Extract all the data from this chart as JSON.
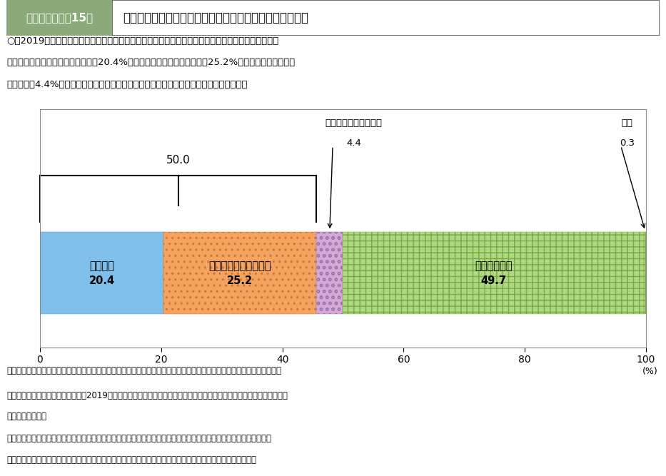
{
  "title_left": "第２－（４）－15図",
  "title_right": "企業のＯＦＦ－ＪＴ又は自己啓発支援への費用支出の状況",
  "title_bg_color": "#8aaa7a",
  "title_right_bg": "#ffffff",
  "desc1": "○　2019年度において、ＯＦＦ－ＪＴ又は自己啓発支援に費用支出した企業の割合は５割となってお",
  "desc2": "　り、内訳をみると「両方支出」は20.4%、「ＯＦＦ－ＪＴのみ支出」は25.2%、「自己啓発支援のみ",
  "desc3": "　支出」は4.4%となっている。一方、どちらにも支出していない企業も約５割存在する。",
  "segments": [
    {
      "label1": "両方支出",
      "label2": "20.4",
      "value": 20.4,
      "facecolor": "#7fbfea",
      "hatch": "~",
      "edgecolor": "#5599cc"
    },
    {
      "label1": "ＯＦＦ－ＪＴのみ支出",
      "label2": "25.2",
      "value": 25.2,
      "facecolor": "#f4a460",
      "hatch": ".",
      "edgecolor": "#c87830"
    },
    {
      "label1": "",
      "label2": "",
      "value": 4.4,
      "facecolor": "#d4a8d8",
      "hatch": "o",
      "edgecolor": "#a078a8"
    },
    {
      "label1": "両方支出なし",
      "label2": "49.7",
      "value": 49.7,
      "facecolor": "#b0d880",
      "hatch": "+",
      "edgecolor": "#78aa48"
    },
    {
      "label1": "",
      "label2": "",
      "value": 0.3,
      "facecolor": "#b0d880",
      "hatch": "+",
      "edgecolor": "#78aa48"
    }
  ],
  "brace_label": "50.0",
  "ann_jikei_text": "自己啓発支援のみ支出",
  "ann_jikei_val": "4.4",
  "ann_fumei_text": "不明",
  "ann_fumei_val": "0.3",
  "xticks": [
    0,
    20,
    40,
    60,
    80,
    100
  ],
  "pct_label": "(%)",
  "source": "資料出所　厚生労働省「令和２年度能力開発基本調査（企業調査）」をもとに厚生労働省政策統括官付政策統括室にて作成",
  "note1a": "（注）　１）「貴社では、令和元（2019）年度に、ＯＦＦ－ＪＴ又は自己啓発支援に費用を支出しましたか。」と尋ねた",
  "note1b": "　　　　　もの。",
  "note2a": "　　　　２）自己啓発とは、労働者が職業生活を継続するために行う、職業に関する能力を自発的に開発し、向上させ",
  "note2b": "　　　　　るための活動をいう（職業に関係ない趣味、娯楽、スポーツ健康増進等のためのものは含まない）。"
}
